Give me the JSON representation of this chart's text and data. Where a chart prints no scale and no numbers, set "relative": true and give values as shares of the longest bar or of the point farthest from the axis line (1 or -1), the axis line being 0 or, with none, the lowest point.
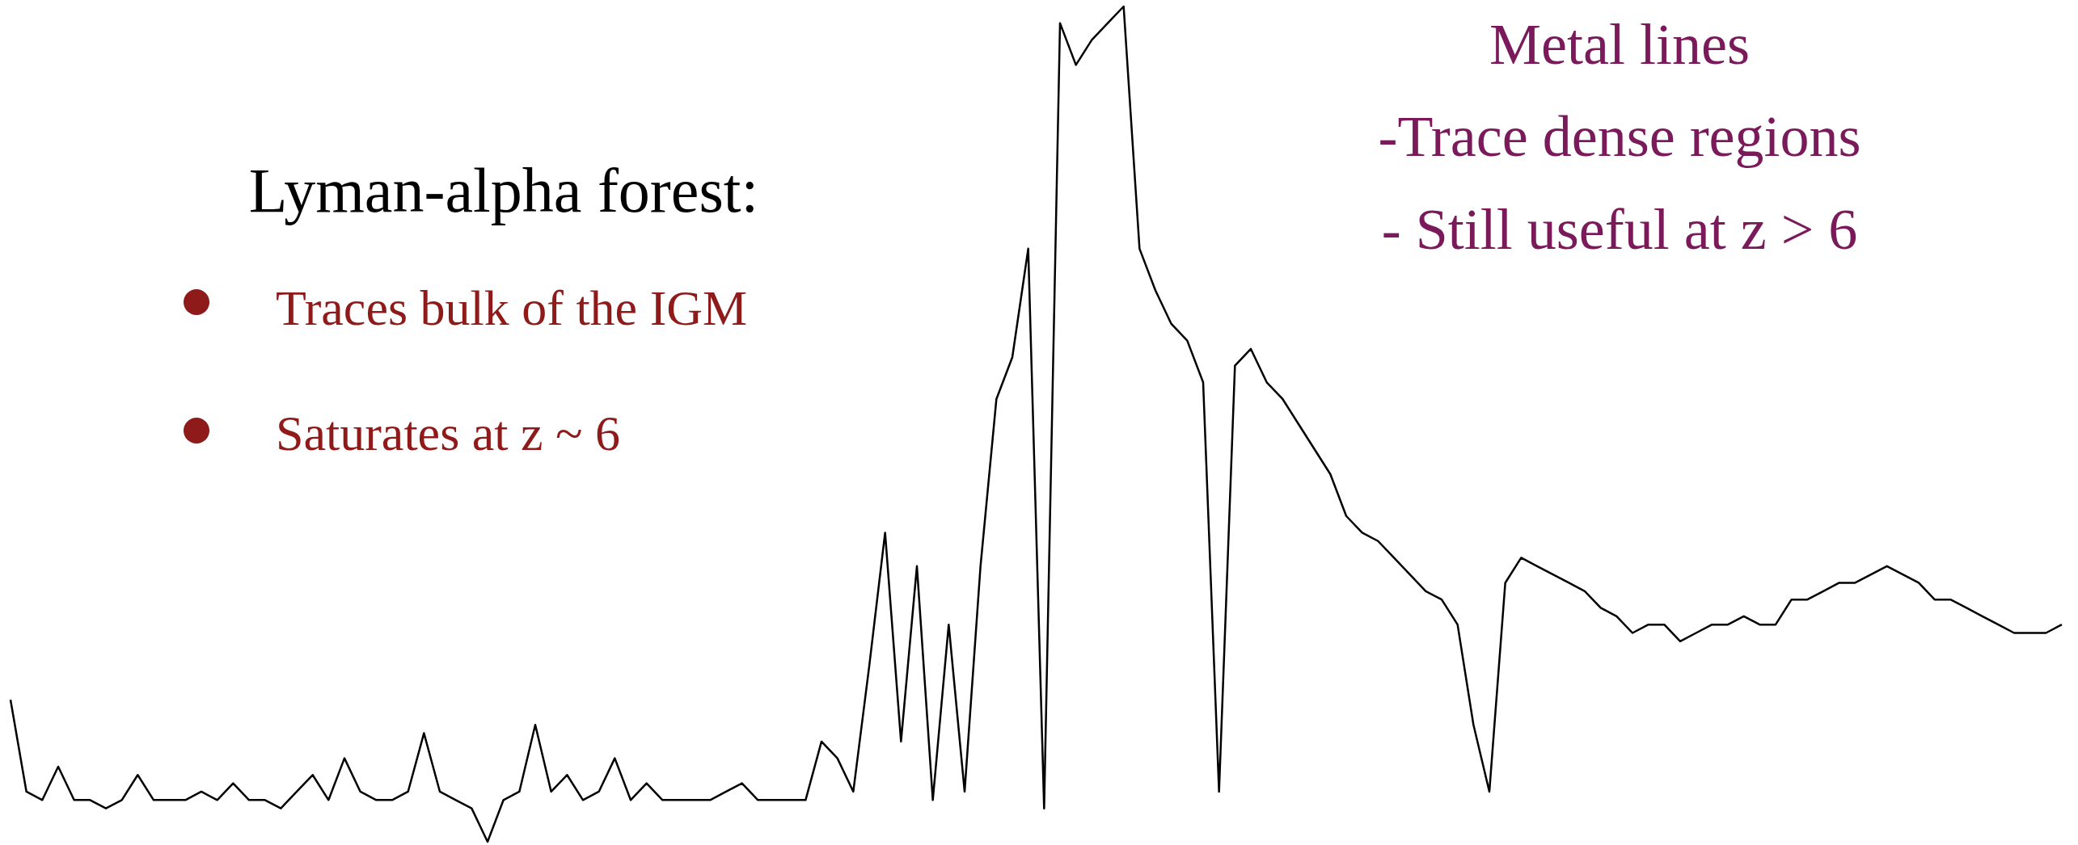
{
  "chart_data": {
    "type": "line",
    "relative": true,
    "categories": [
      null,
      null,
      null,
      null,
      null,
      null,
      null,
      null,
      null,
      null,
      null,
      null,
      null,
      null,
      null,
      null,
      null,
      null,
      null,
      null,
      null,
      null,
      null,
      null,
      null,
      null,
      null,
      null,
      null,
      null,
      null,
      null,
      null,
      null,
      null,
      null,
      null,
      null,
      null,
      null,
      null,
      null,
      null,
      null,
      null,
      null,
      null,
      null,
      null,
      null,
      null,
      null,
      null,
      null,
      null,
      null,
      null,
      null,
      null,
      null,
      null,
      null,
      null,
      null,
      null,
      null,
      null,
      null,
      null,
      null,
      null,
      null,
      null,
      null,
      null,
      null,
      null,
      null,
      null,
      null,
      null,
      null,
      null,
      null,
      null,
      null,
      null,
      null,
      null,
      null,
      null,
      null,
      null,
      null,
      null,
      null,
      null,
      null,
      null,
      null,
      null,
      null,
      null,
      null,
      null,
      null,
      null,
      null,
      null,
      null,
      null,
      null,
      null,
      null,
      null,
      null,
      null,
      null,
      null,
      null,
      null,
      null,
      null,
      null,
      null,
      null,
      null,
      null,
      null,
      null
    ],
    "series": [
      {
        "color": "#000000",
        "values": [
          0.17,
          0.06,
          0.05,
          0.09,
          0.05,
          0.05,
          0.04,
          0.05,
          0.08,
          0.05,
          0.05,
          0.05,
          0.06,
          0.05,
          0.07,
          0.05,
          0.05,
          0.04,
          0.06,
          0.08,
          0.05,
          0.1,
          0.06,
          0.05,
          0.05,
          0.06,
          0.13,
          0.06,
          0.05,
          0.04,
          0,
          0.05,
          0.06,
          0.14,
          0.06,
          0.08,
          0.05,
          0.06,
          0.1,
          0.05,
          0.07,
          0.05,
          0.05,
          0.05,
          0.05,
          0.06,
          0.07,
          0.05,
          0.05,
          0.05,
          0.05,
          0.12,
          0.1,
          0.06,
          0.21,
          0.37,
          0.12,
          0.33,
          0.05,
          0.26,
          0.06,
          0.33,
          0.53,
          0.58,
          0.71,
          0.04,
          0.98,
          0.93,
          0.96,
          0.98,
          1,
          0.71,
          0.66,
          0.62,
          0.6,
          0.55,
          0.06,
          0.57,
          0.59,
          0.55,
          0.53,
          0.5,
          0.47,
          0.44,
          0.39,
          0.37,
          0.36,
          0.34,
          0.32,
          0.3,
          0.29,
          0.26,
          0.14,
          0.06,
          0.31,
          0.34,
          0.33,
          0.32,
          0.31,
          0.3,
          0.28,
          0.27,
          0.25,
          0.26,
          0.26,
          0.24,
          0.25,
          0.26,
          0.26,
          0.27,
          0.26,
          0.26,
          0.29,
          0.29,
          0.3,
          0.31,
          0.31,
          0.32,
          0.33,
          0.32,
          0.31,
          0.29,
          0.29,
          0.28,
          0.27,
          0.26,
          0.25,
          0.25,
          0.25,
          0.26
        ]
      }
    ],
    "annotations": [
      "Lyman-alpha forest:",
      "Traces bulk of the IGM",
      "Saturates at z ~ 6",
      "Metal lines",
      "-Trace dense regions",
      "- Still useful at z > 6"
    ]
  }
}
